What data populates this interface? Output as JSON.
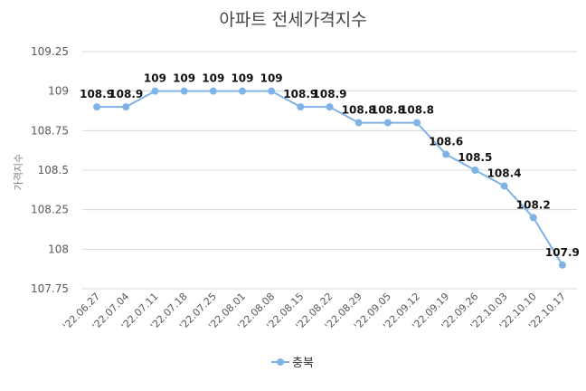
{
  "chart_data": {
    "type": "line",
    "title": "아파트 전세가격지수",
    "ylabel": "가격지수",
    "xlabel": "",
    "ylim": [
      107.75,
      109.25
    ],
    "yticks": [
      107.75,
      108,
      108.25,
      108.5,
      108.75,
      109,
      109.25
    ],
    "ytick_labels": [
      "107.75",
      "108",
      "108.25",
      "108.5",
      "108.75",
      "109",
      "109.25"
    ],
    "grid": true,
    "legend_position": "bottom",
    "categories": [
      "'22.06.27",
      "'22.07.04",
      "'22.07.11",
      "'22.07.18",
      "'22.07.25",
      "'22.08.01",
      "'22.08.08",
      "'22.08.15",
      "'22.08.22",
      "'22.08.29",
      "'22.09.05",
      "'22.09.12",
      "'22.09.19",
      "'22.09.26",
      "'22.10.03",
      "'22.10.10",
      "'22.10.17"
    ],
    "series": [
      {
        "name": "충북",
        "color": "#7fb2e5",
        "values": [
          108.9,
          108.9,
          109,
          109,
          109,
          109,
          109,
          108.9,
          108.9,
          108.8,
          108.8,
          108.8,
          108.6,
          108.5,
          108.4,
          108.2,
          107.9
        ],
        "labels": [
          "108.9",
          "108.9",
          "109",
          "109",
          "109",
          "109",
          "109",
          "108.9",
          "108.9",
          "108.8",
          "108.8",
          "108.8",
          "108.6",
          "108.5",
          "108.4",
          "108.2",
          "107.9"
        ]
      }
    ]
  }
}
